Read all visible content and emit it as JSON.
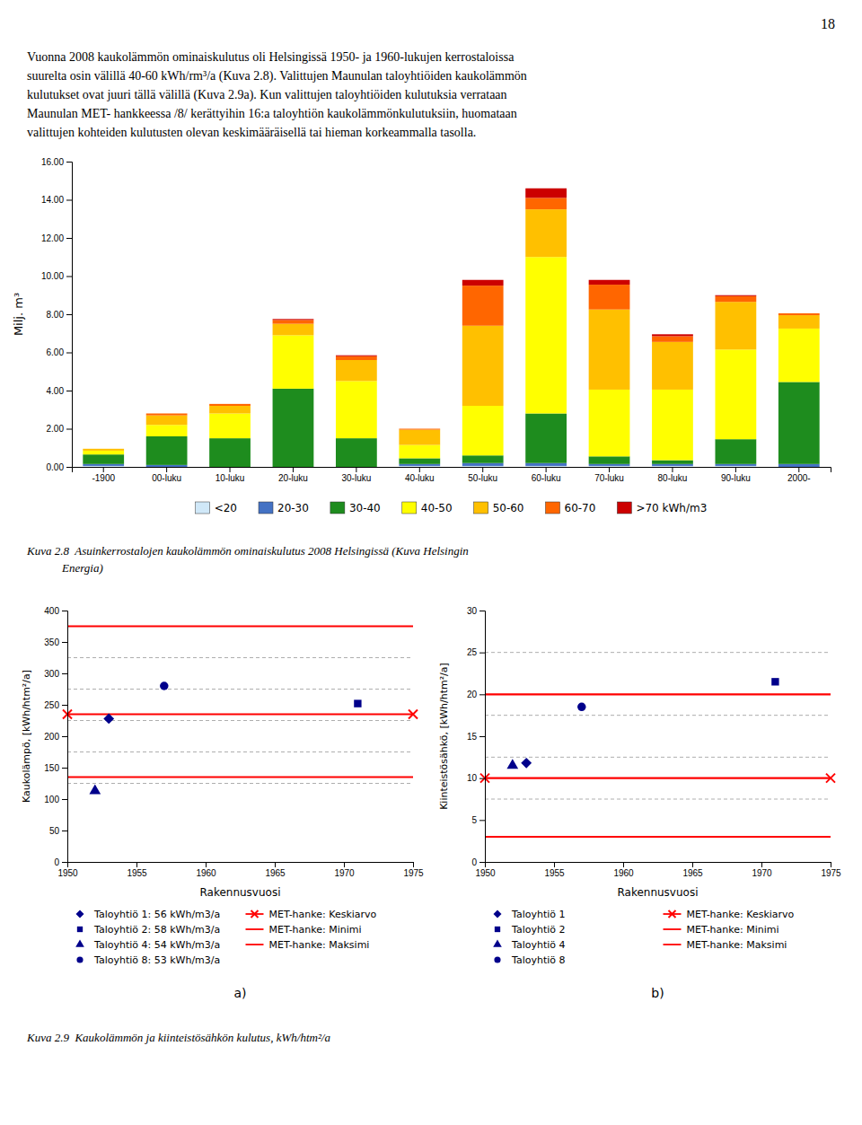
{
  "page_number": "18",
  "text_lines": [
    "Vuonna 2008 kaukolämmön ominaiskulutus oli Helsingissä 1950- ja 1960-lukujen kerrostaloissa",
    "suurelta osin välillä 40-60 kWh/rm³/a (Kuva 2.8). Valittujen Maunulan taloyhtiöiden kaukolämmön",
    "kulutukset ovat juuri tällä välillä (Kuva 2.9a). Kun valittujen taloyhtiöiden kulutuksia verrataan",
    "Maunulan MET- hankkeessa /8/ kerättyihin 16:a taloyhtiön kaukolämmönkulutuksiin, huomataan",
    "valittujen kohteiden kulutusten olevan keskimääräisellä tai hieman korkeammalla tasolla."
  ],
  "captions": [
    [
      "Kuva 2.8  Asuinkerrostalojen kaukolämmön ominaiskulutus 2008 Helsingissä (Kuva Helsingin",
      "            Energia)"
    ],
    [
      "Kuva 2.9  Kaukolämmön ja kiinteistösähkön kulutus, kWh/htm²/a"
    ]
  ],
  "chart_data": [
    {
      "type": "bar",
      "stacked": true,
      "legend": "bottom",
      "categories": [
        "-1900",
        "00-luku",
        "10-luku",
        "20-luku",
        "30-luku",
        "40-luku",
        "50-luku",
        "60-luku",
        "70-luku",
        "80-luku",
        "90-luku",
        "2000-"
      ],
      "series": [
        {
          "name": "<20",
          "color": "#d0e8f8",
          "values": [
            0.05,
            0.0,
            0.0,
            0.0,
            0.0,
            0.05,
            0.05,
            0.05,
            0.05,
            0.05,
            0.05,
            0.0
          ]
        },
        {
          "name": "20-30",
          "color": "#4472c4",
          "values": [
            0.1,
            0.1,
            0.0,
            0.0,
            0.0,
            0.1,
            0.15,
            0.15,
            0.1,
            0.1,
            0.1,
            0.15
          ]
        },
        {
          "name": "30-40",
          "color": "#1e8c1e",
          "values": [
            0.5,
            1.5,
            1.5,
            4.1,
            1.5,
            0.3,
            0.4,
            2.6,
            0.4,
            0.2,
            1.3,
            4.3
          ]
        },
        {
          "name": "40-50",
          "color": "#ffff00",
          "values": [
            0.2,
            0.6,
            1.3,
            2.8,
            3.0,
            0.7,
            2.6,
            8.2,
            3.5,
            3.7,
            4.7,
            2.8
          ]
        },
        {
          "name": "50-60",
          "color": "#ffc000",
          "values": [
            0.1,
            0.5,
            0.4,
            0.6,
            1.1,
            0.8,
            4.2,
            2.5,
            4.2,
            2.5,
            2.5,
            0.7
          ]
        },
        {
          "name": "60-70",
          "color": "#ff6600",
          "values": [
            0.0,
            0.1,
            0.1,
            0.2,
            0.2,
            0.05,
            2.1,
            0.6,
            1.3,
            0.3,
            0.3,
            0.1
          ]
        },
        {
          "name": ">70 kWh/m3",
          "color": "#cc0000",
          "values": [
            0.0,
            0.0,
            0.0,
            0.05,
            0.05,
            0.0,
            0.3,
            0.5,
            0.25,
            0.1,
            0.05,
            0.0
          ]
        }
      ],
      "ylabel": "Milj. m³",
      "ylim": [
        0,
        16.0
      ],
      "yticks": [
        {
          "value": 0.0,
          "label": "0.00"
        },
        {
          "value": 2.0,
          "label": "2.00"
        },
        {
          "value": 4.0,
          "label": "4.00"
        },
        {
          "value": 6.0,
          "label": "6.00"
        },
        {
          "value": 8.0,
          "label": "8.00"
        },
        {
          "value": 10.0,
          "label": "10.00"
        },
        {
          "value": 12.0,
          "label": "12.00"
        },
        {
          "value": 14.0,
          "label": "14.00"
        },
        {
          "value": 16.0,
          "label": "16.00"
        }
      ]
    },
    {
      "type": "scatter",
      "title": "a)",
      "legend": "bottom",
      "xlabel": "Rakennusvuosi",
      "ylabel": "Kaukolämpö, [kWh/htm²/a]",
      "xlim": [
        1950,
        1975
      ],
      "xticks": [
        1950,
        1955,
        1960,
        1965,
        1970,
        1975
      ],
      "ylim": [
        0,
        400
      ],
      "yticks": [
        0,
        50,
        100,
        150,
        200,
        250,
        300,
        350,
        400
      ],
      "hlines": [
        325,
        275,
        225,
        175,
        125
      ],
      "series": [
        {
          "name": "Taloyhtiö 1: 56 kWh/m3/a",
          "marker": "diamond",
          "color": "#00008B",
          "x": [
            1953
          ],
          "values": [
            228
          ]
        },
        {
          "name": "Taloyhtiö 2: 58 kWh/m3/a",
          "marker": "square",
          "color": "#00008B",
          "x": [
            1971
          ],
          "values": [
            252
          ]
        },
        {
          "name": "Taloyhtiö 4: 54 kWh/m3/a",
          "marker": "triangle",
          "color": "#00008B",
          "x": [
            1952
          ],
          "values": [
            113
          ]
        },
        {
          "name": "Taloyhtiö 8: 53 kWh/m3/a",
          "marker": "circle",
          "color": "#00008B",
          "x": [
            1957
          ],
          "values": [
            280
          ]
        },
        {
          "name": "MET-hanke: Keskiarvo",
          "type": "line",
          "marker": "x",
          "color": "red",
          "x": [
            1950,
            1975
          ],
          "values": [
            235,
            235
          ]
        },
        {
          "name": "MET-hanke: Minimi",
          "type": "line",
          "color": "red",
          "x": [
            1950,
            1975
          ],
          "values": [
            135,
            135
          ]
        },
        {
          "name": "MET-hanke: Maksimi",
          "type": "line",
          "color": "red",
          "x": [
            1950,
            1975
          ],
          "values": [
            375,
            375
          ]
        }
      ]
    },
    {
      "type": "scatter",
      "title": "b)",
      "legend": "bottom",
      "xlabel": "Rakennusvuosi",
      "ylabel": "Kiinteistösähkö, [kWh/htm²/a]",
      "xlim": [
        1950,
        1975
      ],
      "xticks": [
        1950,
        1955,
        1960,
        1965,
        1970,
        1975
      ],
      "ylim": [
        0,
        30
      ],
      "yticks": [
        0,
        5,
        10,
        15,
        20,
        25,
        30
      ],
      "hlines": [
        25,
        17.5,
        12.5,
        7.5
      ],
      "series": [
        {
          "name": "Taloyhtiö 1",
          "marker": "diamond",
          "color": "#00008B",
          "x": [
            1953
          ],
          "values": [
            11.8
          ]
        },
        {
          "name": "Taloyhtiö 2",
          "marker": "square",
          "color": "#00008B",
          "x": [
            1971
          ],
          "values": [
            21.5
          ]
        },
        {
          "name": "Taloyhtiö 4",
          "marker": "triangle",
          "color": "#00008B",
          "x": [
            1952
          ],
          "values": [
            11.5
          ]
        },
        {
          "name": "Taloyhtiö 8",
          "marker": "circle",
          "color": "#00008B",
          "x": [
            1957
          ],
          "values": [
            18.5
          ]
        },
        {
          "name": "MET-hanke: Keskiarvo",
          "type": "line",
          "marker": "x",
          "color": "red",
          "x": [
            1950,
            1975
          ],
          "values": [
            10.0,
            10.0
          ]
        },
        {
          "name": "MET-hanke: Minimi",
          "type": "line",
          "color": "red",
          "x": [
            1950,
            1975
          ],
          "values": [
            3.0,
            3.0
          ]
        },
        {
          "name": "MET-hanke: Maksimi",
          "type": "line",
          "color": "red",
          "x": [
            1950,
            1975
          ],
          "values": [
            20.0,
            20.0
          ]
        }
      ]
    }
  ]
}
